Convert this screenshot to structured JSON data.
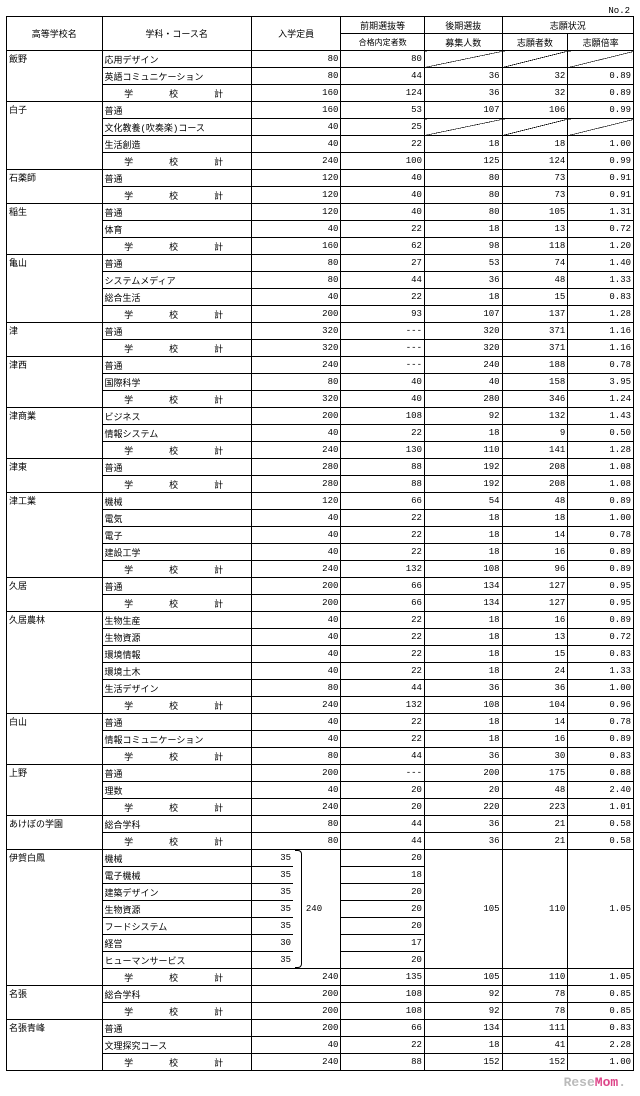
{
  "page": "No.2",
  "brand1": "Rese",
  "brand2": "Mom",
  "headers": {
    "h1": "高等学校名",
    "h2": "学科・コース名",
    "h3": "入学定員",
    "h4": "前期選抜等",
    "h4s": "合格内定者数",
    "h5": "後期選抜",
    "h5s": "募集人数",
    "h6": "志願状況",
    "h6a": "志願者数",
    "h6b": "志願倍率"
  },
  "subtotal": "学　　校　　計",
  "schools": [
    {
      "n": "飯野",
      "rows": [
        [
          "応用デザイン",
          "80",
          "80",
          "diag",
          "diag",
          "diag"
        ],
        [
          "英語コミュニケーション",
          "80",
          "44",
          "36",
          "32",
          "0.89"
        ]
      ],
      "t": [
        "160",
        "124",
        "36",
        "32",
        "0.89"
      ]
    },
    {
      "n": "白子",
      "rows": [
        [
          "普通",
          "160",
          "53",
          "107",
          "106",
          "0.99"
        ],
        [
          "文化教養(吹奏楽)コース",
          "40",
          "25",
          "diag",
          "diag",
          "diag"
        ],
        [
          "生活創造",
          "40",
          "22",
          "18",
          "18",
          "1.00"
        ]
      ],
      "t": [
        "240",
        "100",
        "125",
        "124",
        "0.99"
      ]
    },
    {
      "n": "石薬師",
      "rows": [
        [
          "普通",
          "120",
          "40",
          "80",
          "73",
          "0.91"
        ]
      ],
      "t": [
        "120",
        "40",
        "80",
        "73",
        "0.91"
      ]
    },
    {
      "n": "稲生",
      "rows": [
        [
          "普通",
          "120",
          "40",
          "80",
          "105",
          "1.31"
        ],
        [
          "体育",
          "40",
          "22",
          "18",
          "13",
          "0.72"
        ]
      ],
      "t": [
        "160",
        "62",
        "98",
        "118",
        "1.20"
      ]
    },
    {
      "n": "亀山",
      "rows": [
        [
          "普通",
          "80",
          "27",
          "53",
          "74",
          "1.40"
        ],
        [
          "システムメディア",
          "80",
          "44",
          "36",
          "48",
          "1.33"
        ],
        [
          "総合生活",
          "40",
          "22",
          "18",
          "15",
          "0.83"
        ]
      ],
      "t": [
        "200",
        "93",
        "107",
        "137",
        "1.28"
      ]
    },
    {
      "n": "津",
      "rows": [
        [
          "普通",
          "320",
          "---",
          "320",
          "371",
          "1.16"
        ]
      ],
      "t": [
        "320",
        "---",
        "320",
        "371",
        "1.16"
      ]
    },
    {
      "n": "津西",
      "rows": [
        [
          "普通",
          "240",
          "---",
          "240",
          "188",
          "0.78"
        ],
        [
          "国際科学",
          "80",
          "40",
          "40",
          "158",
          "3.95"
        ]
      ],
      "t": [
        "320",
        "40",
        "280",
        "346",
        "1.24"
      ]
    },
    {
      "n": "津商業",
      "rows": [
        [
          "ビジネス",
          "200",
          "108",
          "92",
          "132",
          "1.43"
        ],
        [
          "情報システム",
          "40",
          "22",
          "18",
          "9",
          "0.50"
        ]
      ],
      "t": [
        "240",
        "130",
        "110",
        "141",
        "1.28"
      ]
    },
    {
      "n": "津東",
      "rows": [
        [
          "普通",
          "280",
          "88",
          "192",
          "208",
          "1.08"
        ]
      ],
      "t": [
        "280",
        "88",
        "192",
        "208",
        "1.08"
      ]
    },
    {
      "n": "津工業",
      "rows": [
        [
          "機械",
          "120",
          "66",
          "54",
          "48",
          "0.89"
        ],
        [
          "電気",
          "40",
          "22",
          "18",
          "18",
          "1.00"
        ],
        [
          "電子",
          "40",
          "22",
          "18",
          "14",
          "0.78"
        ],
        [
          "建設工学",
          "40",
          "22",
          "18",
          "16",
          "0.89"
        ]
      ],
      "t": [
        "240",
        "132",
        "108",
        "96",
        "0.89"
      ]
    },
    {
      "n": "久居",
      "rows": [
        [
          "普通",
          "200",
          "66",
          "134",
          "127",
          "0.95"
        ]
      ],
      "t": [
        "200",
        "66",
        "134",
        "127",
        "0.95"
      ]
    },
    {
      "n": "久居農林",
      "rows": [
        [
          "生物生産",
          "40",
          "22",
          "18",
          "16",
          "0.89"
        ],
        [
          "生物資源",
          "40",
          "22",
          "18",
          "13",
          "0.72"
        ],
        [
          "環境情報",
          "40",
          "22",
          "18",
          "15",
          "0.83"
        ],
        [
          "環境土木",
          "40",
          "22",
          "18",
          "24",
          "1.33"
        ],
        [
          "生活デザイン",
          "80",
          "44",
          "36",
          "36",
          "1.00"
        ]
      ],
      "t": [
        "240",
        "132",
        "108",
        "104",
        "0.96"
      ]
    },
    {
      "n": "白山",
      "rows": [
        [
          "普通",
          "40",
          "22",
          "18",
          "14",
          "0.78"
        ],
        [
          "情報コミュニケーション",
          "40",
          "22",
          "18",
          "16",
          "0.89"
        ]
      ],
      "t": [
        "80",
        "44",
        "36",
        "30",
        "0.83"
      ]
    },
    {
      "n": "上野",
      "rows": [
        [
          "普通",
          "200",
          "---",
          "200",
          "175",
          "0.88"
        ],
        [
          "理数",
          "40",
          "20",
          "20",
          "48",
          "2.40"
        ]
      ],
      "t": [
        "240",
        "20",
        "220",
        "223",
        "1.01"
      ]
    },
    {
      "n": "あけぼの学園",
      "rows": [
        [
          "総合学科",
          "80",
          "44",
          "36",
          "21",
          "0.58"
        ]
      ],
      "t": [
        "80",
        "44",
        "36",
        "21",
        "0.58"
      ]
    },
    {
      "n": "伊賀白鳳",
      "merged": true,
      "cap": "240",
      "rows": [
        [
          "機械",
          "35",
          "20"
        ],
        [
          "電子機械",
          "35",
          "18"
        ],
        [
          "建築デザイン",
          "35",
          "20"
        ],
        [
          "生物資源",
          "35",
          "20"
        ],
        [
          "フードシステム",
          "35",
          "20"
        ],
        [
          "経営",
          "30",
          "17"
        ],
        [
          "ヒューマンサービス",
          "35",
          "20"
        ]
      ],
      "m": [
        "105",
        "110",
        "1.05"
      ],
      "t": [
        "240",
        "240",
        "135",
        "105",
        "110",
        "1.05"
      ]
    },
    {
      "n": "名張",
      "rows": [
        [
          "総合学科",
          "200",
          "108",
          "92",
          "78",
          "0.85"
        ]
      ],
      "t": [
        "200",
        "108",
        "92",
        "78",
        "0.85"
      ]
    },
    {
      "n": "名張青峰",
      "rows": [
        [
          "普通",
          "200",
          "66",
          "134",
          "111",
          "0.83"
        ],
        [
          "文理探究コース",
          "40",
          "22",
          "18",
          "41",
          "2.28"
        ]
      ],
      "t": [
        "240",
        "88",
        "152",
        "152",
        "1.00"
      ]
    }
  ]
}
